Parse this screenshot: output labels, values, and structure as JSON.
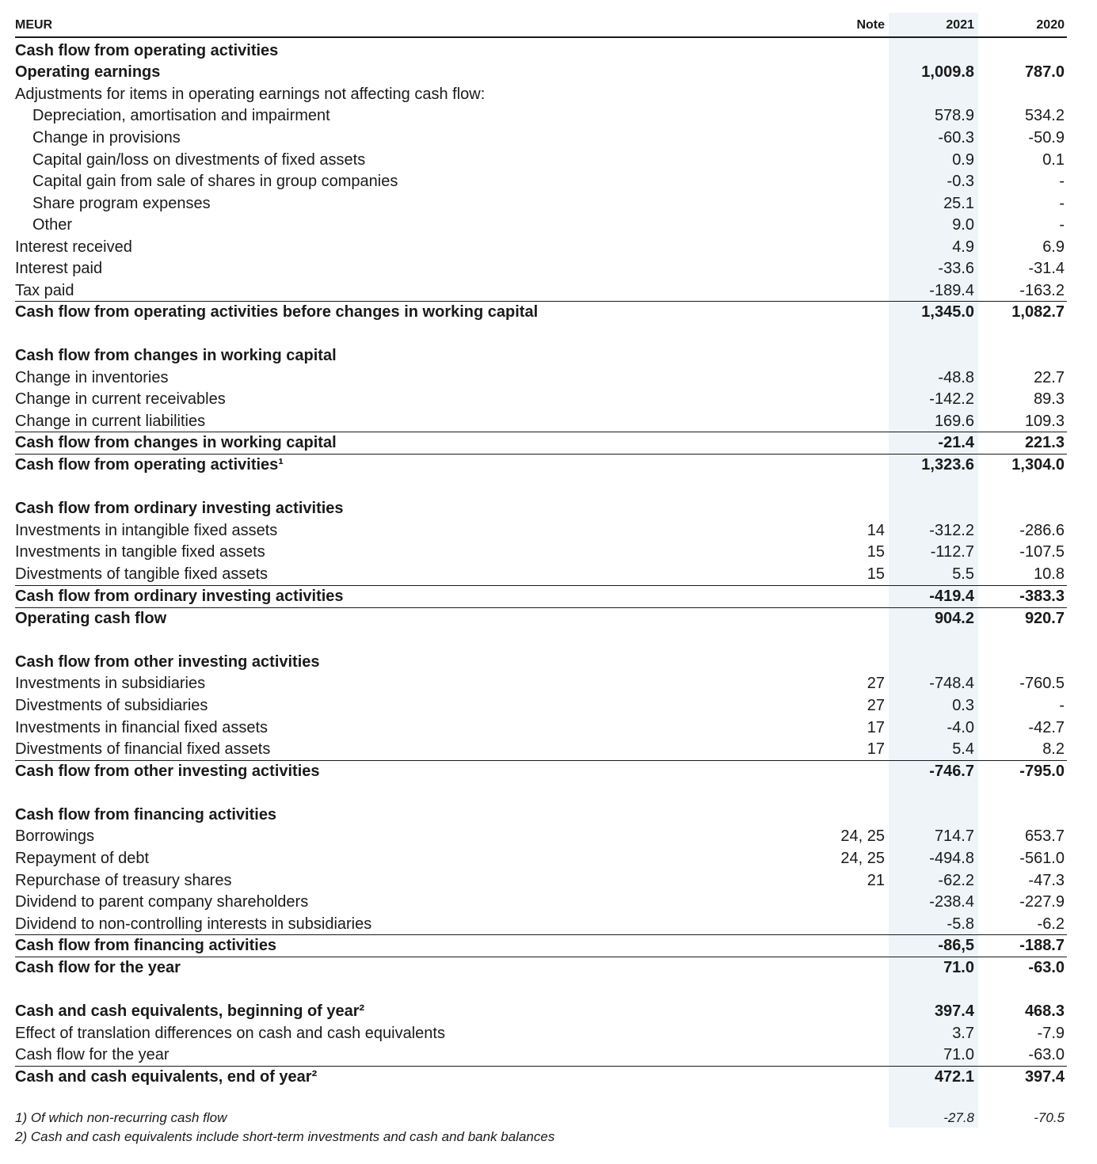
{
  "table": {
    "header": {
      "label": "MEUR",
      "note": "Note",
      "year1": "2021",
      "year2": "2020"
    },
    "rows": [
      {
        "label": "Cash flow from operating activities",
        "note": "",
        "v2021": "",
        "v2020": "",
        "style": "heading"
      },
      {
        "label": "Operating earnings",
        "note": "",
        "v2021": "1,009.8",
        "v2020": "787.0",
        "style": "bold"
      },
      {
        "label": "Adjustments for items in operating earnings not affecting cash flow:",
        "note": "",
        "v2021": "",
        "v2020": "",
        "style": "normal"
      },
      {
        "label": "Depreciation, amortisation and impairment",
        "note": "",
        "v2021": "578.9",
        "v2020": "534.2",
        "style": "indent"
      },
      {
        "label": "Change in provisions",
        "note": "",
        "v2021": "-60.3",
        "v2020": "-50.9",
        "style": "indent"
      },
      {
        "label": "Capital gain/loss on divestments of fixed assets",
        "note": "",
        "v2021": "0.9",
        "v2020": "0.1",
        "style": "indent"
      },
      {
        "label": "Capital gain from sale of shares in group companies",
        "note": "",
        "v2021": "-0.3",
        "v2020": "-",
        "style": "indent"
      },
      {
        "label": "Share program expenses",
        "note": "",
        "v2021": "25.1",
        "v2020": "-",
        "style": "indent"
      },
      {
        "label": "Other",
        "note": "",
        "v2021": "9.0",
        "v2020": "-",
        "style": "indent"
      },
      {
        "label": "Interest received",
        "note": "",
        "v2021": "4.9",
        "v2020": "6.9",
        "style": "normal"
      },
      {
        "label": "Interest paid",
        "note": "",
        "v2021": "-33.6",
        "v2020": "-31.4",
        "style": "normal"
      },
      {
        "label": "Tax paid",
        "note": "",
        "v2021": "-189.4",
        "v2020": "-163.2",
        "style": "normal"
      },
      {
        "label": "Cash flow from operating activities before changes in working capital",
        "note": "",
        "v2021": "1,345.0",
        "v2020": "1,082.7",
        "style": "bold"
      },
      {
        "label": "Cash flow from changes in working capital",
        "note": "",
        "v2021": "",
        "v2020": "",
        "style": "heading"
      },
      {
        "label": "Change in inventories",
        "note": "",
        "v2021": "-48.8",
        "v2020": "22.7",
        "style": "normal"
      },
      {
        "label": "Change in current receivables",
        "note": "",
        "v2021": "-142.2",
        "v2020": "89.3",
        "style": "normal"
      },
      {
        "label": "Change in current liabilities",
        "note": "",
        "v2021": "169.6",
        "v2020": "109.3",
        "style": "normal"
      },
      {
        "label": "Cash flow from changes in working capital",
        "note": "",
        "v2021": "-21.4",
        "v2020": "221.3",
        "style": "bold"
      },
      {
        "label": "Cash flow from operating activities¹",
        "note": "",
        "v2021": "1,323.6",
        "v2020": "1,304.0",
        "style": "bold"
      },
      {
        "label": "Cash flow from ordinary investing activities",
        "note": "",
        "v2021": "",
        "v2020": "",
        "style": "heading"
      },
      {
        "label": "Investments in intangible fixed assets",
        "note": "14",
        "v2021": "-312.2",
        "v2020": "-286.6",
        "style": "normal"
      },
      {
        "label": "Investments in tangible fixed assets",
        "note": "15",
        "v2021": "-112.7",
        "v2020": "-107.5",
        "style": "normal"
      },
      {
        "label": "Divestments of tangible fixed assets",
        "note": "15",
        "v2021": "5.5",
        "v2020": "10.8",
        "style": "normal"
      },
      {
        "label": "Cash flow from ordinary investing activities",
        "note": "",
        "v2021": "-419.4",
        "v2020": "-383.3",
        "style": "bold"
      },
      {
        "label": "Operating cash flow",
        "note": "",
        "v2021": "904.2",
        "v2020": "920.7",
        "style": "bold"
      },
      {
        "label": "Cash flow from other investing activities",
        "note": "",
        "v2021": "",
        "v2020": "",
        "style": "heading"
      },
      {
        "label": "Investments in subsidiaries",
        "note": "27",
        "v2021": "-748.4",
        "v2020": "-760.5",
        "style": "normal"
      },
      {
        "label": "Divestments of subsidiaries",
        "note": "27",
        "v2021": "0.3",
        "v2020": "-",
        "style": "normal"
      },
      {
        "label": "Investments in financial fixed assets",
        "note": "17",
        "v2021": "-4.0",
        "v2020": "-42.7",
        "style": "normal"
      },
      {
        "label": "Divestments of financial fixed assets",
        "note": "17",
        "v2021": "5.4",
        "v2020": "8.2",
        "style": "normal"
      },
      {
        "label": "Cash flow from other investing activities",
        "note": "",
        "v2021": "-746.7",
        "v2020": "-795.0",
        "style": "bold"
      },
      {
        "label": "Cash flow from financing activities",
        "note": "",
        "v2021": "",
        "v2020": "",
        "style": "heading"
      },
      {
        "label": "Borrowings",
        "note": "24, 25",
        "v2021": "714.7",
        "v2020": "653.7",
        "style": "normal"
      },
      {
        "label": "Repayment of debt",
        "note": "24, 25",
        "v2021": "-494.8",
        "v2020": "-561.0",
        "style": "normal"
      },
      {
        "label": "Repurchase of treasury shares",
        "note": "21",
        "v2021": "-62.2",
        "v2020": "-47.3",
        "style": "normal"
      },
      {
        "label": "Dividend to parent company shareholders",
        "note": "",
        "v2021": "-238.4",
        "v2020": "-227.9",
        "style": "normal"
      },
      {
        "label": "Dividend to non-controlling interests in subsidiaries",
        "note": "",
        "v2021": "-5.8",
        "v2020": "-6.2",
        "style": "normal"
      },
      {
        "label": "Cash flow from financing activities",
        "note": "",
        "v2021": "-86,5",
        "v2020": "-188.7",
        "style": "bold"
      },
      {
        "label": "Cash flow for the year",
        "note": "",
        "v2021": "71.0",
        "v2020": "-63.0",
        "style": "bold"
      },
      {
        "label": "Cash and cash equivalents, beginning of year²",
        "note": "",
        "v2021": "397.4",
        "v2020": "468.3",
        "style": "heading"
      },
      {
        "label": "Effect of translation differences on cash and cash equivalents",
        "note": "",
        "v2021": "3.7",
        "v2020": "-7.9",
        "style": "normal"
      },
      {
        "label": "Cash flow for the year",
        "note": "",
        "v2021": "71.0",
        "v2020": "-63.0",
        "style": "normal"
      },
      {
        "label": "Cash and cash equivalents, end of year²",
        "note": "",
        "v2021": "472.1",
        "v2020": "397.4",
        "style": "bold"
      }
    ],
    "footnotes": [
      {
        "text": "1) Of which non-recurring cash flow",
        "v2021": "-27.8",
        "v2020": "-70.5"
      },
      {
        "text": "2) Cash and cash equivalents include short-term investments and cash and bank balances",
        "v2021": "",
        "v2020": ""
      }
    ]
  }
}
